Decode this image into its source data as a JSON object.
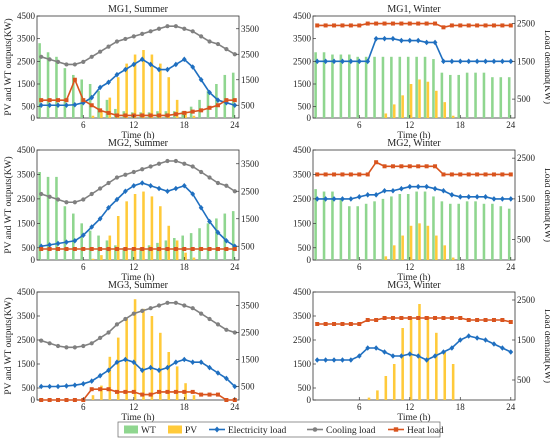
{
  "colors": {
    "WT": "#8fd68f",
    "PV": "#ffca3a",
    "Electricity load": "#1f6fc0",
    "Cooling load": "#808080",
    "Heat load": "#d9541e"
  },
  "legend_entries": [
    "WT",
    "PV",
    "Electricity load",
    "Cooling load",
    "Heat load"
  ],
  "chart_data": [
    {
      "type": "bar",
      "title": "MG1, Summer",
      "xlabel": "Time (h)",
      "ylabel": "PV and WT outputs(KW)",
      "y2label": "",
      "xticks": [
        6,
        12,
        18,
        24
      ],
      "yticks": [
        0,
        500,
        1500,
        2500,
        3500,
        4500
      ],
      "y2ticks": [
        500,
        1500,
        2500,
        3500
      ],
      "ylim": [
        0,
        4500
      ],
      "y2lim": [
        0,
        4000
      ],
      "x": [
        1,
        2,
        3,
        4,
        5,
        6,
        7,
        8,
        9,
        10,
        11,
        12,
        13,
        14,
        15,
        16,
        17,
        18,
        19,
        20,
        21,
        22,
        23,
        24
      ],
      "series": [
        {
          "name": "WT",
          "axis": "left",
          "values": [
            3300,
            2900,
            2700,
            2200,
            1900,
            1700,
            1500,
            1200,
            800,
            400,
            300,
            250,
            250,
            250,
            300,
            300,
            300,
            300,
            500,
            800,
            1200,
            1500,
            1900,
            2000
          ]
        },
        {
          "name": "PV",
          "axis": "left",
          "values": [
            0,
            0,
            0,
            0,
            0,
            0,
            100,
            300,
            900,
            1800,
            2400,
            2800,
            3000,
            2800,
            2400,
            1800,
            800,
            300,
            100,
            0,
            0,
            0,
            0,
            0
          ]
        },
        {
          "name": "Electricity load",
          "axis": "right",
          "values": [
            500,
            500,
            500,
            500,
            520,
            600,
            800,
            1200,
            1400,
            1700,
            1900,
            2100,
            2300,
            2100,
            1900,
            1900,
            2100,
            2300,
            2000,
            1500,
            1000,
            700,
            600,
            500
          ]
        },
        {
          "name": "Cooling load",
          "axis": "right",
          "values": [
            2400,
            2300,
            2200,
            2100,
            2100,
            2200,
            2400,
            2600,
            2800,
            3000,
            3100,
            3200,
            3300,
            3400,
            3500,
            3600,
            3600,
            3500,
            3400,
            3200,
            3000,
            2900,
            2700,
            2500
          ]
        },
        {
          "name": "Heat load",
          "axis": "right",
          "values": [
            700,
            700,
            700,
            700,
            1500,
            700,
            500,
            300,
            200,
            100,
            100,
            100,
            100,
            100,
            100,
            100,
            150,
            200,
            250,
            300,
            400,
            500,
            700,
            700
          ]
        }
      ]
    },
    {
      "type": "bar",
      "title": "MG1, Winter",
      "xlabel": "Time (h)",
      "ylabel": "",
      "y2label": "Load demand(KW)",
      "xticks": [
        6,
        12,
        18,
        24
      ],
      "yticks": [
        0,
        500,
        1500,
        2500,
        3500,
        4500
      ],
      "y2ticks": [
        500,
        1500,
        2500
      ],
      "ylim": [
        0,
        4500
      ],
      "y2lim": [
        0,
        2700
      ],
      "x": [
        1,
        2,
        3,
        4,
        5,
        6,
        7,
        8,
        9,
        10,
        11,
        12,
        13,
        14,
        15,
        16,
        17,
        18,
        19,
        20,
        21,
        22,
        23,
        24
      ],
      "series": [
        {
          "name": "WT",
          "axis": "left",
          "values": [
            2900,
            2900,
            2800,
            2800,
            2800,
            2700,
            2700,
            2700,
            2700,
            2700,
            2700,
            2700,
            2700,
            2700,
            2600,
            2000,
            1900,
            1900,
            2000,
            2000,
            2000,
            1800,
            1800,
            1800
          ]
        },
        {
          "name": "PV",
          "axis": "left",
          "values": [
            0,
            0,
            0,
            0,
            0,
            0,
            0,
            0,
            200,
            600,
            1000,
            1500,
            1700,
            1600,
            1200,
            700,
            100,
            0,
            0,
            0,
            0,
            0,
            0,
            0
          ]
        },
        {
          "name": "Electricity load",
          "axis": "right",
          "values": [
            1500,
            1500,
            1500,
            1500,
            1500,
            1500,
            1500,
            2100,
            2100,
            2100,
            2050,
            2050,
            2050,
            2000,
            2000,
            1500,
            1500,
            1500,
            1500,
            1500,
            1500,
            1500,
            1500,
            1500
          ]
        },
        {
          "name": "Heat load",
          "axis": "right",
          "values": [
            2450,
            2450,
            2450,
            2450,
            2450,
            2450,
            2500,
            2500,
            2500,
            2500,
            2500,
            2500,
            2500,
            2500,
            2500,
            2400,
            2450,
            2450,
            2450,
            2450,
            2450,
            2450,
            2450,
            2450
          ]
        }
      ]
    },
    {
      "type": "bar",
      "title": "MG2, Summer",
      "xlabel": "Time (h)",
      "ylabel": "PV and WT outputs(KW)",
      "y2label": "",
      "xticks": [
        6,
        12,
        18,
        24
      ],
      "yticks": [
        0,
        500,
        1500,
        2500,
        3500,
        4500
      ],
      "y2ticks": [
        500,
        1500,
        2500,
        3500
      ],
      "ylim": [
        0,
        4500
      ],
      "y2lim": [
        0,
        4000
      ],
      "x": [
        1,
        2,
        3,
        4,
        5,
        6,
        7,
        8,
        9,
        10,
        11,
        12,
        13,
        14,
        15,
        16,
        17,
        18,
        19,
        20,
        21,
        22,
        23,
        24
      ],
      "series": [
        {
          "name": "WT",
          "axis": "left",
          "values": [
            3600,
            3400,
            3400,
            2200,
            1900,
            1500,
            1200,
            1000,
            800,
            600,
            500,
            400,
            500,
            600,
            700,
            800,
            900,
            1000,
            1100,
            1300,
            1500,
            1700,
            1900,
            2000
          ]
        },
        {
          "name": "PV",
          "axis": "left",
          "values": [
            0,
            0,
            0,
            0,
            0,
            0,
            50,
            200,
            1000,
            1800,
            2400,
            2700,
            2800,
            2600,
            2200,
            1400,
            800,
            300,
            100,
            0,
            0,
            0,
            0,
            0
          ]
        },
        {
          "name": "Electricity load",
          "axis": "right",
          "values": [
            500,
            550,
            600,
            650,
            700,
            900,
            1200,
            1500,
            1900,
            2200,
            2500,
            2700,
            2800,
            2700,
            2600,
            2500,
            2600,
            2700,
            2400,
            1900,
            1400,
            1000,
            700,
            500
          ]
        },
        {
          "name": "Cooling load",
          "axis": "right",
          "values": [
            2400,
            2300,
            2200,
            2100,
            2100,
            2200,
            2400,
            2600,
            2800,
            3000,
            3100,
            3200,
            3300,
            3400,
            3500,
            3600,
            3600,
            3500,
            3400,
            3200,
            3000,
            2800,
            2700,
            2500
          ]
        },
        {
          "name": "Heat load",
          "axis": "right",
          "values": [
            400,
            400,
            400,
            400,
            400,
            400,
            400,
            400,
            400,
            400,
            400,
            400,
            400,
            400,
            400,
            400,
            400,
            400,
            400,
            400,
            400,
            400,
            400,
            400
          ]
        }
      ]
    },
    {
      "type": "bar",
      "title": "MG2, Winter",
      "xlabel": "Time (h)",
      "ylabel": "",
      "y2label": "Load demand(KW)",
      "xticks": [
        6,
        12,
        18,
        24
      ],
      "yticks": [
        0,
        500,
        1500,
        2500,
        3500,
        4500
      ],
      "y2ticks": [
        500,
        1500,
        2500
      ],
      "ylim": [
        0,
        4500
      ],
      "y2lim": [
        0,
        2700
      ],
      "x": [
        1,
        2,
        3,
        4,
        5,
        6,
        7,
        8,
        9,
        10,
        11,
        12,
        13,
        14,
        15,
        16,
        17,
        18,
        19,
        20,
        21,
        22,
        23,
        24
      ],
      "series": [
        {
          "name": "WT",
          "axis": "left",
          "values": [
            2900,
            2800,
            2800,
            2500,
            2200,
            2200,
            2300,
            2400,
            2500,
            2600,
            2700,
            2700,
            2800,
            2800,
            2600,
            2400,
            2300,
            2300,
            2400,
            2400,
            2300,
            2300,
            2200,
            2100
          ]
        },
        {
          "name": "PV",
          "axis": "left",
          "values": [
            0,
            0,
            0,
            0,
            0,
            0,
            0,
            0,
            150,
            600,
            1000,
            1400,
            1500,
            1400,
            1000,
            600,
            100,
            0,
            0,
            0,
            0,
            0,
            0,
            0
          ]
        },
        {
          "name": "Electricity load",
          "axis": "right",
          "values": [
            1500,
            1500,
            1500,
            1500,
            1500,
            1550,
            1600,
            1600,
            1700,
            1700,
            1750,
            1800,
            1800,
            1800,
            1750,
            1700,
            1600,
            1550,
            1550,
            1550,
            1550,
            1500,
            1500,
            1500
          ]
        },
        {
          "name": "Heat load",
          "axis": "right",
          "values": [
            2100,
            2100,
            2100,
            2100,
            2100,
            2100,
            2100,
            2400,
            2300,
            2300,
            2300,
            2300,
            2300,
            2300,
            2300,
            2100,
            2100,
            2100,
            2100,
            2100,
            2100,
            2100,
            2100,
            2100
          ]
        }
      ]
    },
    {
      "type": "bar",
      "title": "MG3, Summer",
      "xlabel": "Time (h)",
      "ylabel": "PV and WT outputs(KW)",
      "y2label": "",
      "xticks": [
        6,
        12,
        18,
        24
      ],
      "yticks": [
        0,
        500,
        1500,
        2500,
        3500,
        4500
      ],
      "y2ticks": [
        500,
        1500,
        2500,
        3500
      ],
      "ylim": [
        0,
        4500
      ],
      "y2lim": [
        0,
        4000
      ],
      "x": [
        1,
        2,
        3,
        4,
        5,
        6,
        7,
        8,
        9,
        10,
        11,
        12,
        13,
        14,
        15,
        16,
        17,
        18,
        19,
        20,
        21,
        22,
        23,
        24
      ],
      "series": [
        {
          "name": "WT",
          "axis": "left",
          "values": [
            0,
            0,
            0,
            0,
            0,
            0,
            0,
            0,
            0,
            0,
            0,
            0,
            0,
            0,
            0,
            0,
            0,
            0,
            0,
            0,
            0,
            0,
            0,
            0
          ]
        },
        {
          "name": "PV",
          "axis": "left",
          "values": [
            0,
            0,
            0,
            0,
            0,
            0,
            200,
            600,
            1800,
            2600,
            3400,
            4200,
            3800,
            3500,
            2800,
            2000,
            1400,
            700,
            200,
            0,
            0,
            0,
            0,
            0
          ]
        },
        {
          "name": "Electricity load",
          "axis": "right",
          "values": [
            500,
            500,
            500,
            520,
            550,
            600,
            700,
            900,
            1100,
            1400,
            1500,
            1400,
            1100,
            1200,
            1100,
            1200,
            1400,
            1500,
            1400,
            1400,
            1200,
            1000,
            800,
            500
          ]
        },
        {
          "name": "Cooling load",
          "axis": "right",
          "values": [
            2200,
            2100,
            2000,
            1950,
            1950,
            2000,
            2100,
            2300,
            2500,
            2800,
            3000,
            3200,
            3300,
            3400,
            3500,
            3600,
            3600,
            3500,
            3400,
            3200,
            3000,
            2800,
            2600,
            2500
          ]
        },
        {
          "name": "Heat load",
          "axis": "right",
          "values": [
            0,
            0,
            0,
            0,
            0,
            0,
            400,
            400,
            400,
            300,
            300,
            300,
            200,
            200,
            300,
            300,
            300,
            300,
            300,
            200,
            200,
            200,
            0,
            0
          ]
        }
      ]
    },
    {
      "type": "bar",
      "title": "MG3, Winter",
      "xlabel": "Time (h)",
      "ylabel": "",
      "y2label": "Load demand(KW)",
      "xticks": [
        6,
        12,
        18,
        24
      ],
      "yticks": [
        0,
        500,
        1500,
        2500,
        3500,
        4500
      ],
      "y2ticks": [
        500,
        1500,
        2500
      ],
      "ylim": [
        0,
        4500
      ],
      "y2lim": [
        0,
        2700
      ],
      "x": [
        1,
        2,
        3,
        4,
        5,
        6,
        7,
        8,
        9,
        10,
        11,
        12,
        13,
        14,
        15,
        16,
        17,
        18,
        19,
        20,
        21,
        22,
        23,
        24
      ],
      "series": [
        {
          "name": "WT",
          "axis": "left",
          "values": [
            0,
            0,
            0,
            0,
            0,
            0,
            0,
            0,
            0,
            0,
            0,
            0,
            0,
            0,
            0,
            0,
            0,
            0,
            0,
            0,
            0,
            0,
            0,
            0
          ]
        },
        {
          "name": "PV",
          "axis": "left",
          "values": [
            0,
            0,
            0,
            0,
            0,
            0,
            100,
            400,
            1000,
            1500,
            3000,
            3400,
            4000,
            3500,
            2800,
            2000,
            1500,
            0,
            0,
            0,
            0,
            0,
            0,
            0
          ]
        },
        {
          "name": "Electricity load",
          "axis": "right",
          "values": [
            1000,
            1000,
            1000,
            1000,
            1000,
            1100,
            1300,
            1300,
            1200,
            1100,
            1100,
            1150,
            1100,
            1000,
            1100,
            1200,
            1300,
            1500,
            1600,
            1550,
            1500,
            1400,
            1300,
            1200
          ]
        },
        {
          "name": "Heat load",
          "axis": "right",
          "values": [
            1900,
            1900,
            1900,
            1900,
            1900,
            1900,
            2000,
            2000,
            2050,
            2050,
            2050,
            2050,
            2050,
            2050,
            2050,
            2050,
            2050,
            2050,
            2000,
            2000,
            2000,
            2000,
            2000,
            1950
          ]
        }
      ]
    }
  ]
}
